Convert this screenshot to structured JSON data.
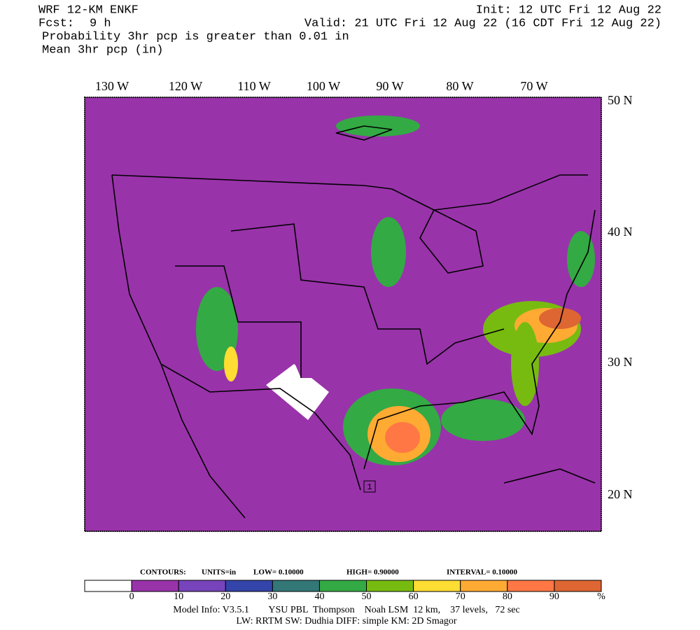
{
  "header": {
    "model": "WRF 12-KM ENKF",
    "init": "Init: 12 UTC Fri 12 Aug 22",
    "fcst_label": "Fcst:",
    "fcst": "9 h",
    "valid": "Valid: 21 UTC Fri 12 Aug 22 (16 CDT Fri 12 Aug 22)",
    "field1": "Probability 3hr pcp is greater than 0.01 in",
    "field2": "Mean 3hr pcp (in)"
  },
  "map": {
    "lon_labels": [
      "130 W",
      "120 W",
      "110 W",
      "100 W",
      "90 W",
      "80 W",
      "70 W"
    ],
    "lat_labels": [
      "50 N",
      "40 N",
      "30 N",
      "20 N"
    ],
    "marker": "1"
  },
  "contours": {
    "label": "CONTOURS:",
    "units": "UNITS=in",
    "low": "LOW= 0.10000",
    "high": "HIGH= 0.90000",
    "interval": "INTERVAL=  0.10000"
  },
  "colorbar": {
    "labels": [
      "0",
      "10",
      "20",
      "30",
      "40",
      "50",
      "60",
      "70",
      "80",
      "90",
      "%"
    ],
    "colors": [
      "#ffffff",
      "#9933aa",
      "#7744bb",
      "#3344aa",
      "#337777",
      "#33aa44",
      "#77bb11",
      "#ffdd33",
      "#ffaa33",
      "#ff7744",
      "#dd6633"
    ]
  },
  "footer": {
    "line1": "Model Info: V3.5.1        YSU PBL  Thompson    Noah LSM  12 km,    37 levels,   72 sec",
    "line2": "LW: RRTM SW: Dudhia  DIFF: simple KM: 2D Smagor"
  }
}
